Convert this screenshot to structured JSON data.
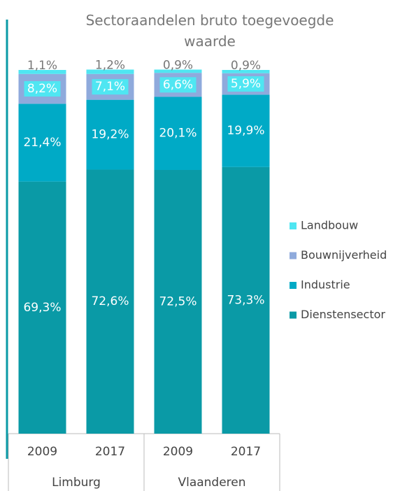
{
  "chart_data": {
    "type": "stacked_bar",
    "title": "Sectoraandelen bruto toegevoegde waarde",
    "categories": [
      "2009",
      "2017",
      "2009",
      "2017"
    ],
    "groups": [
      "Limburg",
      "Vlaanderen"
    ],
    "ylim": [
      0,
      100
    ],
    "legend": "right",
    "series": [
      {
        "name": "Dienstensector",
        "color": "#0a9aa6",
        "values": [
          69.3,
          72.6,
          72.5,
          73.3
        ],
        "value_labels": [
          "69,3%",
          "72,6%",
          "72,5%",
          "73,3%"
        ]
      },
      {
        "name": "Industrie",
        "color": "#00aac6",
        "values": [
          21.4,
          19.2,
          20.1,
          19.9
        ],
        "value_labels": [
          "21,4%",
          "19,2%",
          "20,1%",
          "19,9%"
        ]
      },
      {
        "name": "Bouwnijverheid",
        "color": "#8faadc",
        "values": [
          8.2,
          7.1,
          6.6,
          5.9
        ],
        "value_labels": [
          "8,2%",
          "7,1%",
          "6,6%",
          "5,9%"
        ]
      },
      {
        "name": "Landbouw",
        "color": "#4fe6f2",
        "values": [
          1.1,
          1.2,
          0.9,
          0.9
        ],
        "value_labels": [
          "1,1%",
          "1,2%",
          "0,9%",
          "0,9%"
        ]
      }
    ]
  }
}
